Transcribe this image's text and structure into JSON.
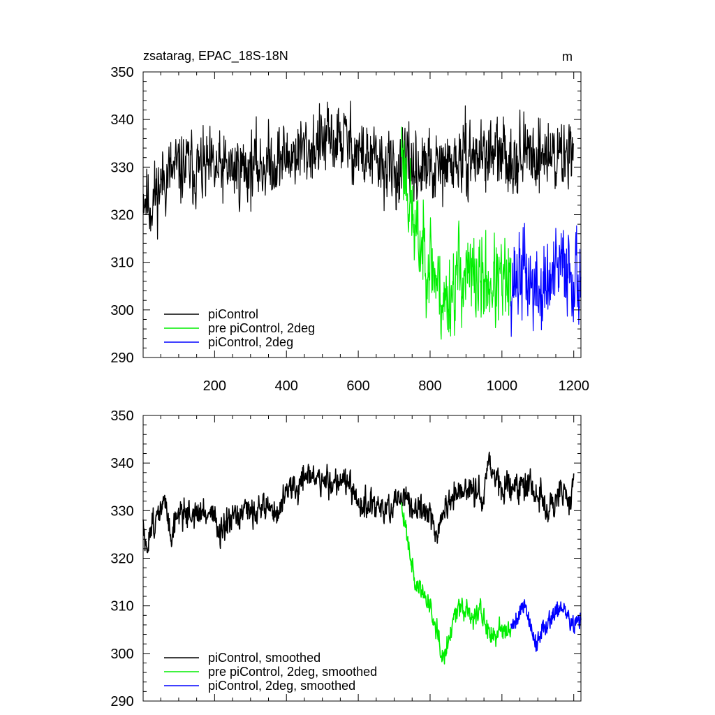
{
  "chart_data": [
    {
      "type": "line",
      "title": "zsatarag, EPAC_18S-18N",
      "units_label": "m",
      "xlim": [
        1,
        1220
      ],
      "ylim": [
        290,
        350
      ],
      "xticks": [
        200,
        400,
        600,
        800,
        1000,
        1200
      ],
      "yticks": [
        290,
        300,
        310,
        320,
        330,
        340,
        350
      ],
      "xtick_labels": [
        "200",
        "400",
        "600",
        "800",
        "1000",
        "1200"
      ],
      "ytick_labels": [
        "290",
        "300",
        "310",
        "320",
        "330",
        "340",
        "350"
      ],
      "legend_position": "bottom-left",
      "grid": false,
      "series": [
        {
          "name": "piControl",
          "color": "#000000",
          "gen": {
            "start": 1,
            "end": 1200,
            "noise": 3.5,
            "seed": 11,
            "knots": [
              [
                1,
                325
              ],
              [
                20,
                322
              ],
              [
                60,
                328
              ],
              [
                120,
                330
              ],
              [
                200,
                329
              ],
              [
                300,
                330
              ],
              [
                360,
                331
              ],
              [
                430,
                333
              ],
              [
                500,
                335
              ],
              [
                560,
                336
              ],
              [
                620,
                332
              ],
              [
                700,
                329
              ],
              [
                760,
                330
              ],
              [
                820,
                329
              ],
              [
                870,
                331
              ],
              [
                950,
                333
              ],
              [
                1000,
                332
              ],
              [
                1100,
                333
              ],
              [
                1180,
                332
              ],
              [
                1200,
                338
              ]
            ]
          }
        },
        {
          "name": "pre piControl, 2deg",
          "color": "#00ee00",
          "gen": {
            "start": 720,
            "end": 1025,
            "noise": 4.5,
            "seed": 23,
            "knots": [
              [
                720,
                335
              ],
              [
                735,
                327
              ],
              [
                760,
                315
              ],
              [
                800,
                311
              ],
              [
                840,
                301
              ],
              [
                880,
                308
              ],
              [
                920,
                306
              ],
              [
                960,
                306
              ],
              [
                1000,
                305
              ],
              [
                1025,
                305
              ]
            ]
          }
        },
        {
          "name": "piControl, 2deg",
          "color": "#0000ff",
          "gen": {
            "start": 1025,
            "end": 1220,
            "noise": 4.5,
            "seed": 37,
            "knots": [
              [
                1025,
                306
              ],
              [
                1060,
                308
              ],
              [
                1100,
                303
              ],
              [
                1140,
                306
              ],
              [
                1180,
                310
              ],
              [
                1220,
                306
              ]
            ]
          }
        }
      ]
    },
    {
      "type": "line",
      "title": "",
      "xlim": [
        1,
        1220
      ],
      "ylim": [
        290,
        350
      ],
      "xticks": [
        200,
        400,
        600,
        800,
        1000,
        1200
      ],
      "yticks": [
        290,
        300,
        310,
        320,
        330,
        340,
        350
      ],
      "ytick_labels": [
        "290",
        "300",
        "310",
        "320",
        "330",
        "340",
        "350"
      ],
      "legend_position": "bottom-left",
      "grid": false,
      "series": [
        {
          "name": "piControl, smoothed",
          "color": "#000000",
          "gen": {
            "start": 1,
            "end": 1200,
            "noise": 1.4,
            "seed": 51,
            "knots": [
              [
                1,
                327
              ],
              [
                10,
                320
              ],
              [
                20,
                327
              ],
              [
                40,
                328
              ],
              [
                60,
                332
              ],
              [
                80,
                325
              ],
              [
                100,
                330
              ],
              [
                150,
                329
              ],
              [
                200,
                330
              ],
              [
                210,
                324
              ],
              [
                250,
                328
              ],
              [
                300,
                330
              ],
              [
                350,
                331
              ],
              [
                380,
                329
              ],
              [
                400,
                335
              ],
              [
                430,
                334
              ],
              [
                450,
                338
              ],
              [
                500,
                336
              ],
              [
                530,
                336
              ],
              [
                560,
                337
              ],
              [
                600,
                331
              ],
              [
                650,
                331
              ],
              [
                700,
                330
              ],
              [
                720,
                333
              ],
              [
                760,
                330
              ],
              [
                800,
                330
              ],
              [
                820,
                325
              ],
              [
                850,
                332
              ],
              [
                900,
                334
              ],
              [
                950,
                334
              ],
              [
                960,
                340
              ],
              [
                1000,
                334
              ],
              [
                1050,
                336
              ],
              [
                1100,
                334
              ],
              [
                1130,
                329
              ],
              [
                1160,
                334
              ],
              [
                1190,
                331
              ],
              [
                1200,
                339
              ]
            ]
          }
        },
        {
          "name": "pre piControl, 2deg, smoothed",
          "color": "#00ee00",
          "gen": {
            "start": 720,
            "end": 1025,
            "noise": 1.1,
            "seed": 63,
            "knots": [
              [
                720,
                330
              ],
              [
                735,
                326
              ],
              [
                760,
                314
              ],
              [
                780,
                313
              ],
              [
                800,
                310
              ],
              [
                820,
                305
              ],
              [
                840,
                299
              ],
              [
                850,
                303
              ],
              [
                880,
                311
              ],
              [
                900,
                309
              ],
              [
                920,
                307
              ],
              [
                940,
                310
              ],
              [
                960,
                304
              ],
              [
                980,
                303
              ],
              [
                1000,
                306
              ],
              [
                1025,
                305
              ]
            ]
          }
        },
        {
          "name": "piControl, 2deg, smoothed",
          "color": "#0000ff",
          "gen": {
            "start": 1025,
            "end": 1220,
            "noise": 1.0,
            "seed": 79,
            "knots": [
              [
                1025,
                306
              ],
              [
                1045,
                308
              ],
              [
                1065,
                311
              ],
              [
                1080,
                305
              ],
              [
                1100,
                302
              ],
              [
                1120,
                306
              ],
              [
                1140,
                308
              ],
              [
                1160,
                310
              ],
              [
                1180,
                308
              ],
              [
                1200,
                306
              ],
              [
                1220,
                307
              ]
            ]
          }
        }
      ]
    }
  ]
}
